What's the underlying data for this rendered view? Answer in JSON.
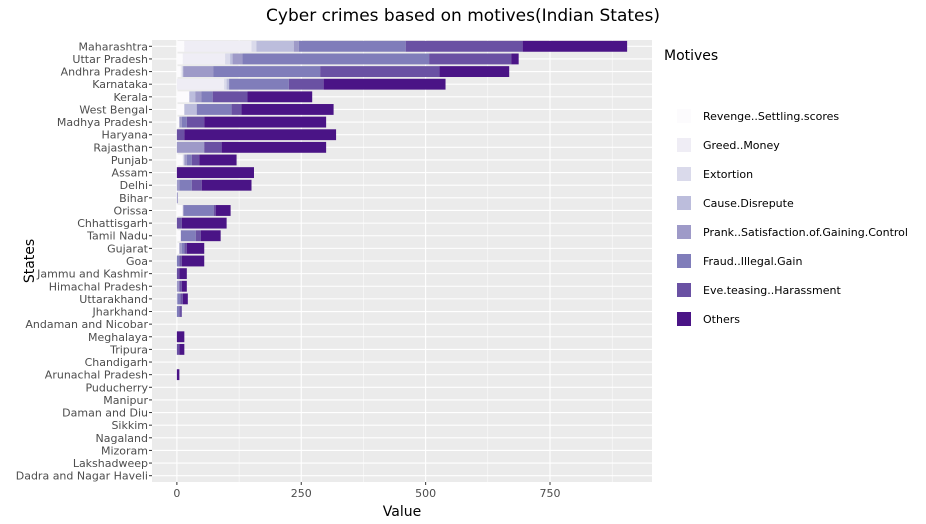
{
  "chart_data": {
    "type": "bar",
    "orientation": "horizontal",
    "stacked": true,
    "title": "Cyber crimes based on motives(Indian States)",
    "xlabel": "Value",
    "ylabel": "States",
    "xlim": [
      -50,
      955
    ],
    "xticks": [
      0,
      250,
      500,
      750
    ],
    "grid": true,
    "legend_title": "Motives",
    "legend_position": "right",
    "categories": [
      "Maharashtra",
      "Uttar Pradesh",
      "Andhra Pradesh",
      "Karnataka",
      "Kerala",
      "West Bengal",
      "Madhya Pradesh",
      "Haryana",
      "Rajasthan",
      "Punjab",
      "Assam",
      "Delhi",
      "Bihar",
      "Orissa",
      "Chhattisgarh",
      "Tamil Nadu",
      "Gujarat",
      "Goa",
      "Jammu and Kashmir",
      "Himachal Pradesh",
      "Uttarakhand",
      "Jharkhand",
      "Andaman and Nicobar",
      "Meghalaya",
      "Tripura",
      "Chandigarh",
      "Arunachal Pradesh",
      "Puducherry",
      "Manipur",
      "Daman and Diu",
      "Sikkim",
      "Nagaland",
      "Mizoram",
      "Lakshadweep",
      "Dadra and Nagar Haveli"
    ],
    "series": [
      {
        "name": "Revenge..Settling.scores",
        "color": "#fcfbfd",
        "values": [
          15,
          12,
          8,
          0,
          25,
          15,
          5,
          0,
          0,
          12,
          0,
          0,
          0,
          12,
          0,
          8,
          5,
          0,
          0,
          0,
          0,
          0,
          0,
          0,
          0,
          0,
          0,
          0,
          0,
          0,
          0,
          0,
          0,
          0,
          0
        ]
      },
      {
        "name": "Greed..Money",
        "color": "#efedf5",
        "values": [
          135,
          85,
          2,
          95,
          0,
          0,
          0,
          0,
          0,
          0,
          0,
          0,
          0,
          0,
          0,
          0,
          0,
          0,
          0,
          0,
          0,
          0,
          0,
          0,
          0,
          0,
          0,
          0,
          0,
          0,
          0,
          0,
          0,
          0,
          0
        ]
      },
      {
        "name": "Extortion",
        "color": "#dadaeb",
        "values": [
          10,
          10,
          2,
          5,
          0,
          0,
          0,
          0,
          0,
          3,
          0,
          0,
          0,
          0,
          0,
          0,
          0,
          0,
          0,
          0,
          0,
          0,
          0,
          0,
          0,
          0,
          0,
          0,
          0,
          0,
          0,
          0,
          0,
          0,
          0
        ]
      },
      {
        "name": "Cause.Disrepute",
        "color": "#bcbddc",
        "values": [
          75,
          5,
          1,
          5,
          12,
          25,
          0,
          0,
          0,
          0,
          0,
          0,
          0,
          0,
          0,
          0,
          0,
          0,
          0,
          0,
          0,
          0,
          0,
          0,
          0,
          0,
          0,
          0,
          0,
          0,
          0,
          0,
          0,
          0,
          0
        ]
      },
      {
        "name": "Prank..Satisfaction.of.Gaining.Control",
        "color": "#9e9ac8",
        "values": [
          10,
          20,
          60,
          0,
          12,
          0,
          5,
          0,
          55,
          5,
          0,
          5,
          2,
          2,
          0,
          0,
          5,
          0,
          0,
          5,
          2,
          0,
          0,
          0,
          0,
          0,
          0,
          0,
          0,
          0,
          0,
          0,
          0,
          0,
          0
        ]
      },
      {
        "name": "Fraud..Illegal.Gain",
        "color": "#807dba",
        "values": [
          215,
          375,
          215,
          120,
          23,
          70,
          10,
          0,
          0,
          10,
          0,
          25,
          0,
          60,
          0,
          30,
          5,
          5,
          0,
          0,
          5,
          5,
          0,
          0,
          0,
          0,
          0,
          0,
          0,
          0,
          0,
          0,
          0,
          0,
          0
        ]
      },
      {
        "name": "Eve.teasing..Harassment",
        "color": "#6a51a3",
        "values": [
          235,
          165,
          240,
          70,
          70,
          20,
          35,
          15,
          35,
          15,
          0,
          20,
          0,
          4,
          10,
          10,
          5,
          5,
          5,
          5,
          5,
          5,
          0,
          0,
          5,
          0,
          0,
          0,
          0,
          0,
          0,
          0,
          0,
          0,
          0
        ]
      },
      {
        "name": "Others",
        "color": "#4a1486",
        "values": [
          210,
          15,
          140,
          245,
          130,
          185,
          245,
          305,
          210,
          75,
          155,
          100,
          0,
          30,
          90,
          40,
          35,
          45,
          15,
          10,
          10,
          0,
          0,
          15,
          10,
          0,
          5,
          0,
          0,
          0,
          0,
          0,
          0,
          0,
          0
        ]
      }
    ]
  }
}
